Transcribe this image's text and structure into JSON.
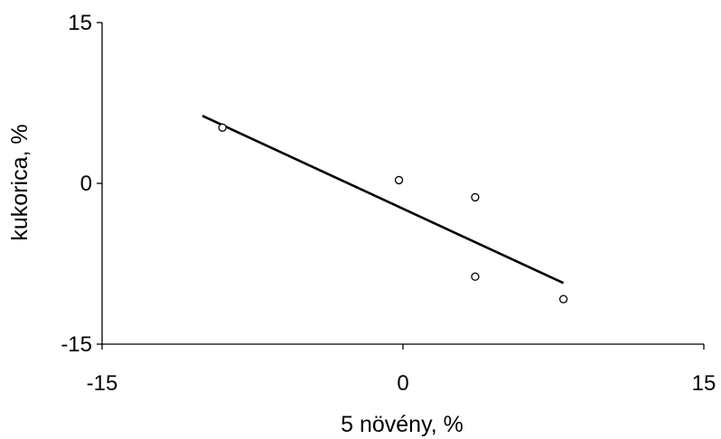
{
  "chart_data": {
    "type": "scatter",
    "title": "",
    "xlabel": "5 növény, %",
    "ylabel": "kukorica, %",
    "xlim": [
      -15,
      15
    ],
    "ylim": [
      -15,
      15
    ],
    "x_ticks": [
      -15,
      0,
      15
    ],
    "y_ticks": [
      -15,
      0,
      15
    ],
    "x_tick_labels": [
      "-15",
      "0",
      "15"
    ],
    "y_tick_labels": [
      "-15",
      "0",
      "15"
    ],
    "grid": false,
    "legend": "none",
    "points": [
      {
        "x": -9,
        "y": 5.2
      },
      {
        "x": -0.2,
        "y": 0.3
      },
      {
        "x": 3.6,
        "y": -1.3
      },
      {
        "x": 3.6,
        "y": -8.7
      },
      {
        "x": 8,
        "y": -10.8
      }
    ],
    "trendline": {
      "x": [
        -10,
        8
      ],
      "y": [
        6.3,
        -9.3
      ]
    },
    "colors": {
      "marker_fill": "#ffffff",
      "marker_stroke": "#000000",
      "line": "#000000"
    }
  }
}
